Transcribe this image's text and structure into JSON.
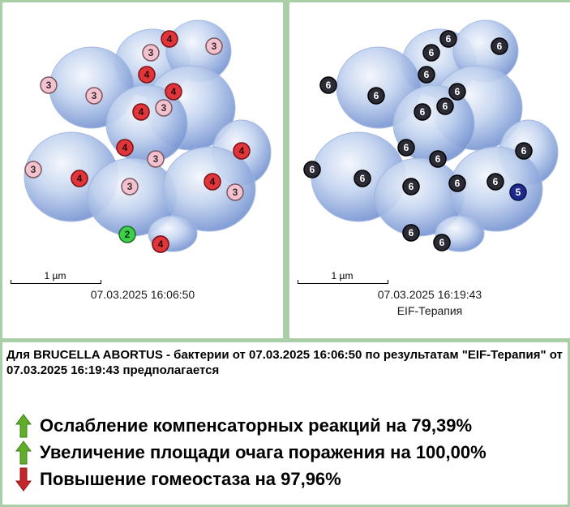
{
  "left_panel": {
    "scale_label": "1 µm",
    "timestamp": "07.03.2025 16:06:50",
    "markers": [
      {
        "label": "4",
        "color": "red"
      },
      {
        "label": "3",
        "color": "pink"
      },
      {
        "label": "3",
        "color": "pink"
      },
      {
        "label": "4",
        "color": "red"
      },
      {
        "label": "3",
        "color": "pink"
      },
      {
        "label": "3",
        "color": "pink"
      },
      {
        "label": "4",
        "color": "red"
      },
      {
        "label": "3",
        "color": "pink"
      },
      {
        "label": "4",
        "color": "red"
      },
      {
        "label": "4",
        "color": "red"
      },
      {
        "label": "4",
        "color": "red"
      },
      {
        "label": "3",
        "color": "pink"
      },
      {
        "label": "4",
        "color": "red"
      },
      {
        "label": "3",
        "color": "pink"
      },
      {
        "label": "4",
        "color": "red"
      },
      {
        "label": "3",
        "color": "pink"
      },
      {
        "label": "3",
        "color": "pink"
      },
      {
        "label": "4",
        "color": "red"
      },
      {
        "label": "2",
        "color": "green"
      },
      {
        "label": "4",
        "color": "red"
      }
    ]
  },
  "right_panel": {
    "scale_label": "1 µm",
    "timestamp": "07.03.2025 16:19:43",
    "subtitle": "EIF-Терапия",
    "markers": [
      {
        "label": "6",
        "color": "dark"
      },
      {
        "label": "6",
        "color": "dark"
      },
      {
        "label": "6",
        "color": "dark"
      },
      {
        "label": "6",
        "color": "dark"
      },
      {
        "label": "6",
        "color": "dark"
      },
      {
        "label": "6",
        "color": "dark"
      },
      {
        "label": "6",
        "color": "dark"
      },
      {
        "label": "6",
        "color": "dark"
      },
      {
        "label": "6",
        "color": "dark"
      },
      {
        "label": "6",
        "color": "dark"
      },
      {
        "label": "6",
        "color": "dark"
      },
      {
        "label": "6",
        "color": "dark"
      },
      {
        "label": "6",
        "color": "dark"
      },
      {
        "label": "6",
        "color": "dark"
      },
      {
        "label": "6",
        "color": "dark"
      },
      {
        "label": "6",
        "color": "dark"
      },
      {
        "label": "6",
        "color": "dark"
      },
      {
        "label": "5",
        "color": "blue"
      },
      {
        "label": "6",
        "color": "dark"
      },
      {
        "label": "6",
        "color": "dark"
      }
    ]
  },
  "summary": "Для BRUCELLA ABORTUS - бактерии от 07.03.2025 16:06:50 по результатам \"EIF-Терапия\" от 07.03.2025 16:19:43 предполагается",
  "results": [
    {
      "direction": "up",
      "text": "Ослабление компенсаторных реакций на 79,39%"
    },
    {
      "direction": "up",
      "text": "Увеличение площади очага поражения на 100,00%"
    },
    {
      "direction": "down",
      "text": "Повышение гомеостаза на 97,96%"
    }
  ],
  "colors": {
    "background": "#a9cfa6",
    "marker_red": "#e0363b",
    "marker_pink": "#f2c3cf",
    "marker_green": "#3ccf4a",
    "marker_dark": "#2b2b35",
    "marker_blue": "#1d2a8c",
    "arrow_up": "#5fae2a",
    "arrow_down": "#c4262a"
  }
}
